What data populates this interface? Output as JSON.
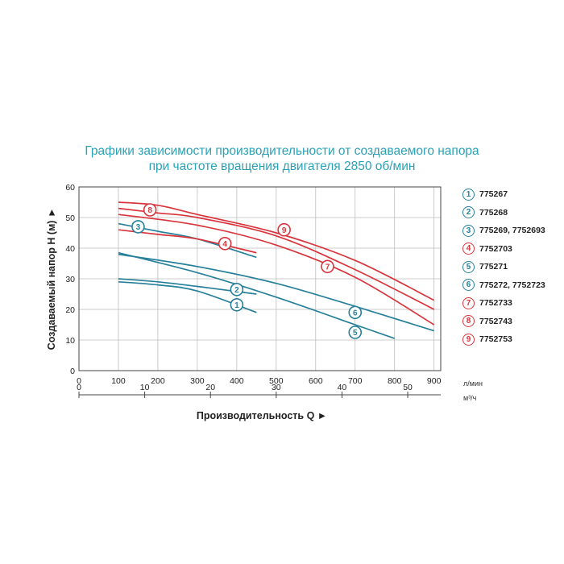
{
  "title": {
    "line1": "Графики зависимости производительности от создаваемого напора",
    "line2": "при частоте вращения двигателя 2850 об/мин"
  },
  "colors": {
    "teal": "#27809a",
    "red": "#d9343c",
    "title": "#2aa2b6"
  },
  "chart_data": {
    "type": "line",
    "ylabel": "Создаваемый напор H (м) ►",
    "xlabel": "Производительность Q ►",
    "x_unit_lmin": "л/мин",
    "x_unit_m3h": "м³/ч",
    "ylim": [
      0,
      60
    ],
    "xlim_lmin": [
      0,
      917
    ],
    "grid": true,
    "y_ticks": [
      "0",
      "10",
      "20",
      "30",
      "40",
      "50",
      "60"
    ],
    "x_ticks_lmin": [
      "0",
      "100",
      "200",
      "300",
      "400",
      "500",
      "600",
      "700",
      "800",
      "900"
    ],
    "x_ticks_m3h": [
      "0",
      "10",
      "20",
      "30",
      "40",
      "50"
    ],
    "series": [
      {
        "name": "775267",
        "badge": "1",
        "color": "teal",
        "x": [
          100,
          200,
          300,
          450
        ],
        "y": [
          29,
          28,
          26,
          19
        ],
        "marker_at": [
          400,
          21.5
        ]
      },
      {
        "name": "775268",
        "badge": "2",
        "color": "teal",
        "x": [
          100,
          200,
          300,
          450
        ],
        "y": [
          30,
          29,
          27.5,
          25
        ],
        "marker_at": [
          400,
          26.5
        ]
      },
      {
        "name": "775269, 7752693",
        "badge": "3",
        "color": "teal",
        "x": [
          100,
          200,
          300,
          450
        ],
        "y": [
          48,
          45.5,
          43,
          37
        ],
        "marker_at": [
          150,
          47
        ]
      },
      {
        "name": "7752703",
        "badge": "4",
        "color": "red",
        "x": [
          100,
          200,
          300,
          450
        ],
        "y": [
          46,
          44.5,
          43,
          38.5
        ],
        "marker_at": [
          370,
          41.5
        ]
      },
      {
        "name": "775271",
        "badge": "5",
        "color": "teal",
        "x": [
          100,
          300,
          500,
          700,
          800
        ],
        "y": [
          38.5,
          32,
          24,
          15,
          10.5
        ],
        "marker_at": [
          700,
          12.5
        ]
      },
      {
        "name": "775272, 7752723",
        "badge": "6",
        "color": "teal",
        "x": [
          100,
          300,
          500,
          700,
          900
        ],
        "y": [
          38,
          34,
          28.5,
          21,
          13
        ],
        "marker_at": [
          700,
          19
        ]
      },
      {
        "name": "7752733",
        "badge": "7",
        "color": "red",
        "x": [
          100,
          300,
          500,
          700,
          900
        ],
        "y": [
          51,
          47.5,
          41,
          30.5,
          15
        ],
        "marker_at": [
          630,
          34
        ]
      },
      {
        "name": "7752743",
        "badge": "8",
        "color": "red",
        "x": [
          100,
          200,
          300,
          500,
          700,
          900
        ],
        "y": [
          55,
          54,
          51,
          45,
          36,
          23
        ],
        "marker_at": [
          180,
          52.5
        ]
      },
      {
        "name": "7752753",
        "badge": "9",
        "color": "red",
        "x": [
          100,
          200,
          300,
          500,
          700,
          900
        ],
        "y": [
          53,
          51.5,
          50,
          44,
          33,
          20
        ],
        "marker_at": [
          520,
          46
        ]
      }
    ]
  }
}
